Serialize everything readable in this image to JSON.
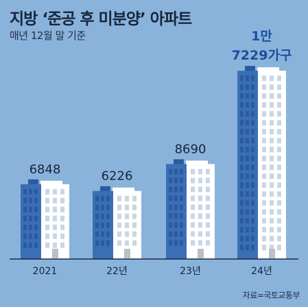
{
  "title": "지방 ‘준공 후 미분양’ 아파트",
  "subtitle": "매년 12월 말 기준",
  "source": "자료=국토교통부",
  "colors": {
    "background": "#8ab3dc",
    "building_blue": "#3a6fb5",
    "building_white": "#ffffff",
    "window_dark": "#2b5aa0",
    "window_light": "#c9d6e6",
    "highlight_label": "#1b4f9c",
    "text": "#17253a"
  },
  "chart_data": {
    "type": "bar",
    "title": "지방 ‘준공 후 미분양’ 아파트",
    "subtitle": "매년 12월 말 기준",
    "categories": [
      "2021",
      "22년",
      "23년",
      "24년"
    ],
    "values": [
      6848,
      6226,
      8690,
      17229
    ],
    "value_labels": [
      [
        "6848"
      ],
      [
        "6226"
      ],
      [
        "8690"
      ],
      [
        "1만",
        "7229가구"
      ]
    ],
    "highlight_index": 3
  }
}
